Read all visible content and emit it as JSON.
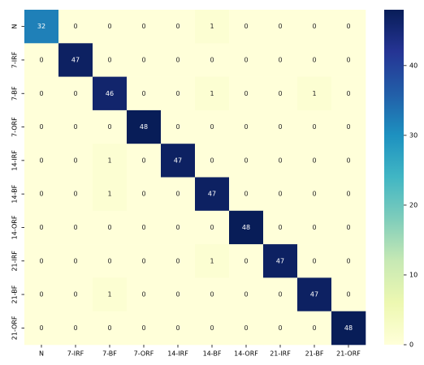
{
  "chart_data": {
    "type": "heatmap",
    "x_categories": [
      "N",
      "7-IRF",
      "7-BF",
      "7-ORF",
      "14-IRF",
      "14-BF",
      "14-ORF",
      "21-IRF",
      "21-BF",
      "21-ORF"
    ],
    "y_categories": [
      "N",
      "7-IRF",
      "7-BF",
      "7-ORF",
      "14-IRF",
      "14-BF",
      "14-ORF",
      "21-IRF",
      "21-BF",
      "21-ORF"
    ],
    "values": [
      [
        32,
        0,
        0,
        0,
        0,
        1,
        0,
        0,
        0,
        0
      ],
      [
        0,
        47,
        0,
        0,
        0,
        0,
        0,
        0,
        0,
        0
      ],
      [
        0,
        0,
        46,
        0,
        0,
        1,
        0,
        0,
        1,
        0
      ],
      [
        0,
        0,
        0,
        48,
        0,
        0,
        0,
        0,
        0,
        0
      ],
      [
        0,
        0,
        1,
        0,
        47,
        0,
        0,
        0,
        0,
        0
      ],
      [
        0,
        0,
        1,
        0,
        0,
        47,
        0,
        0,
        0,
        0
      ],
      [
        0,
        0,
        0,
        0,
        0,
        0,
        48,
        0,
        0,
        0
      ],
      [
        0,
        0,
        0,
        0,
        0,
        1,
        0,
        47,
        0,
        0
      ],
      [
        0,
        0,
        1,
        0,
        0,
        0,
        0,
        0,
        47,
        0
      ],
      [
        0,
        0,
        0,
        0,
        0,
        0,
        0,
        0,
        0,
        48
      ]
    ],
    "colormap": "YlGnBu",
    "clim": [
      0,
      48
    ],
    "cticks": [
      0,
      10,
      20,
      30,
      40
    ]
  }
}
